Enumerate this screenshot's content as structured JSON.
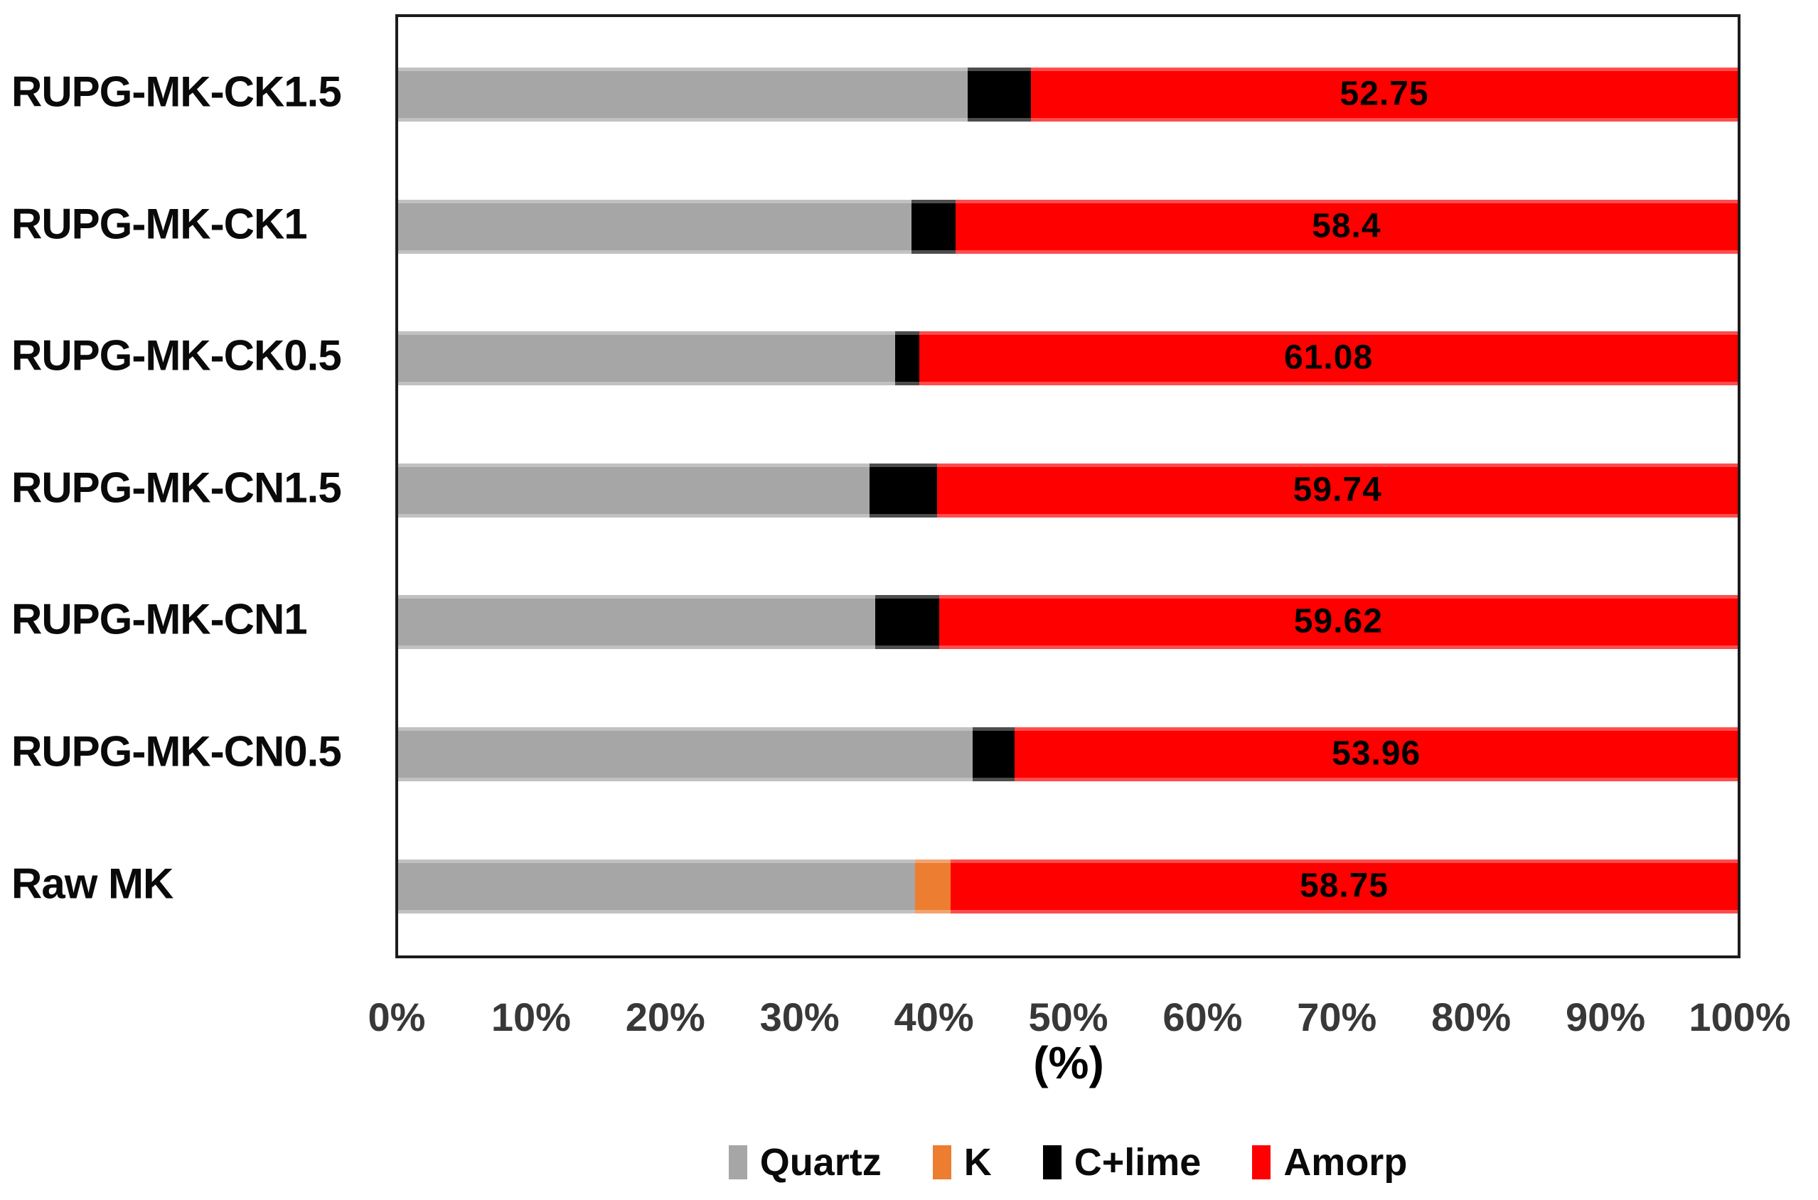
{
  "figure": {
    "background": "#ffffff"
  },
  "colors": {
    "plot_border": "#1c1c1c",
    "tick_label": "#383838",
    "data_label": "#000000",
    "category_label": "#0a0a0a",
    "quartz": "#a6a6a6",
    "k": "#ed7d31",
    "c_lime": "#000000",
    "amorp": "#ff0000"
  },
  "chart_data": {
    "type": "bar",
    "orientation": "horizontal",
    "stacked": true,
    "grid": false,
    "categories": [
      "RUPG-MK-CK1.5",
      "RUPG-MK-CK1",
      "RUPG-MK-CK0.5",
      "RUPG-MK-CN1.5",
      "RUPG-MK-CN1",
      "RUPG-MK-CN0.5",
      "Raw MK"
    ],
    "series": [
      {
        "name": "Quartz",
        "color": "#a6a6a6",
        "values": [
          42.5,
          38.3,
          37.1,
          35.2,
          35.6,
          42.9,
          38.6
        ]
      },
      {
        "name": "K",
        "color": "#ed7d31",
        "values": [
          0,
          0,
          0,
          0,
          0,
          0,
          2.65
        ]
      },
      {
        "name": "C+lime",
        "color": "#000000",
        "values": [
          4.75,
          3.3,
          1.82,
          5.06,
          4.78,
          3.14,
          0
        ]
      },
      {
        "name": "Amorp",
        "color": "#ff0000",
        "values": [
          52.75,
          58.4,
          61.08,
          59.74,
          59.62,
          53.96,
          58.75
        ]
      }
    ],
    "data_labels": {
      "series": "Amorp",
      "values": [
        "52.75",
        "58.4",
        "61.08",
        "59.74",
        "59.62",
        "53.96",
        "58.75"
      ]
    },
    "xlabel": "(%)",
    "xlim": [
      0,
      100
    ],
    "x_ticks": [
      "0%",
      "10%",
      "20%",
      "30%",
      "40%",
      "50%",
      "60%",
      "70%",
      "80%",
      "90%",
      "100%"
    ],
    "legend": {
      "position": "bottom",
      "entries": [
        {
          "label": "Quartz",
          "color": "#a6a6a6"
        },
        {
          "label": "K",
          "color": "#ed7d31"
        },
        {
          "label": "C+lime",
          "color": "#000000"
        },
        {
          "label": "Amorp",
          "color": "#ff0000"
        }
      ]
    }
  }
}
